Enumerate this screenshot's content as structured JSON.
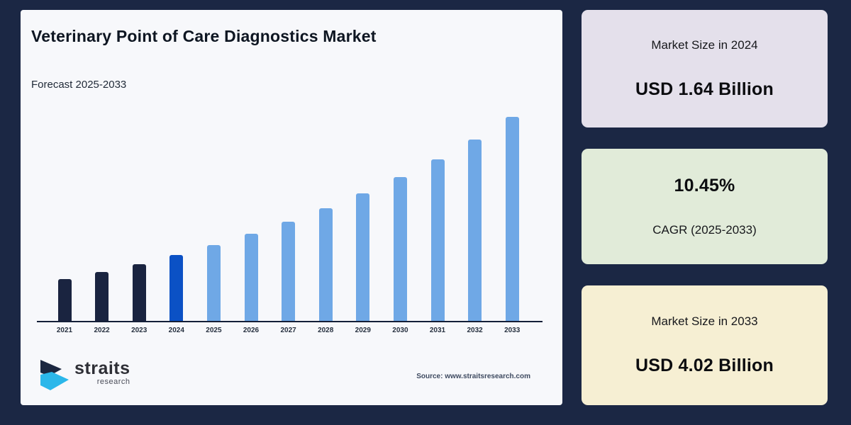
{
  "colors": {
    "page_background": "#1b2744",
    "panel_background": "#f7f8fb",
    "axis_line": "#141f38"
  },
  "chart_panel": {
    "title": "Veterinary Point of Care Diagnostics Market",
    "subtitle": "Forecast 2025-2033",
    "source": "Source: www.straitsresearch.com",
    "logo": {
      "name": "straits",
      "sub": "research"
    }
  },
  "chart_data": {
    "type": "bar",
    "title": "Veterinary Point of Care Diagnostics Market",
    "subtitle": "Forecast 2025-2033",
    "unit": "USD Billion",
    "categories": [
      "2021",
      "2022",
      "2023",
      "2024",
      "2025",
      "2026",
      "2027",
      "2028",
      "2029",
      "2030",
      "2031",
      "2032",
      "2033"
    ],
    "values": [
      1.22,
      1.34,
      1.48,
      1.64,
      1.81,
      2.0,
      2.21,
      2.44,
      2.7,
      2.98,
      3.29,
      3.63,
      4.02
    ],
    "color_roles": [
      "historical",
      "historical",
      "historical",
      "base_year",
      "forecast",
      "forecast",
      "forecast",
      "forecast",
      "forecast",
      "forecast",
      "forecast",
      "forecast",
      "forecast"
    ],
    "bar_colors": {
      "historical": "#1a2440",
      "base_year": "#0b51c5",
      "forecast": "#6fa8e6"
    },
    "xlabel": "",
    "ylabel": "",
    "ylim": [
      0.5,
      4.02
    ],
    "grid": false,
    "legend": "none",
    "notes": "Dark navy bars = historical 2021-2023, blue bar = base year 2024 (USD 1.64B), light blue bars = forecast 2025-2033 at 10.45% CAGR to USD 4.02B; y-axis not drawn, baseline visually clipped near 0.5"
  },
  "stat_cards": [
    {
      "label": "Market Size in 2024",
      "value": "USD 1.64 Billion",
      "bg": "#e4e0eb"
    },
    {
      "label": "CAGR (2025-2033)",
      "value": "10.45%",
      "bg": "#e1ebd9"
    },
    {
      "label": "Market Size in 2033",
      "value": "USD 4.02 Billion",
      "bg": "#f6efd3"
    }
  ]
}
